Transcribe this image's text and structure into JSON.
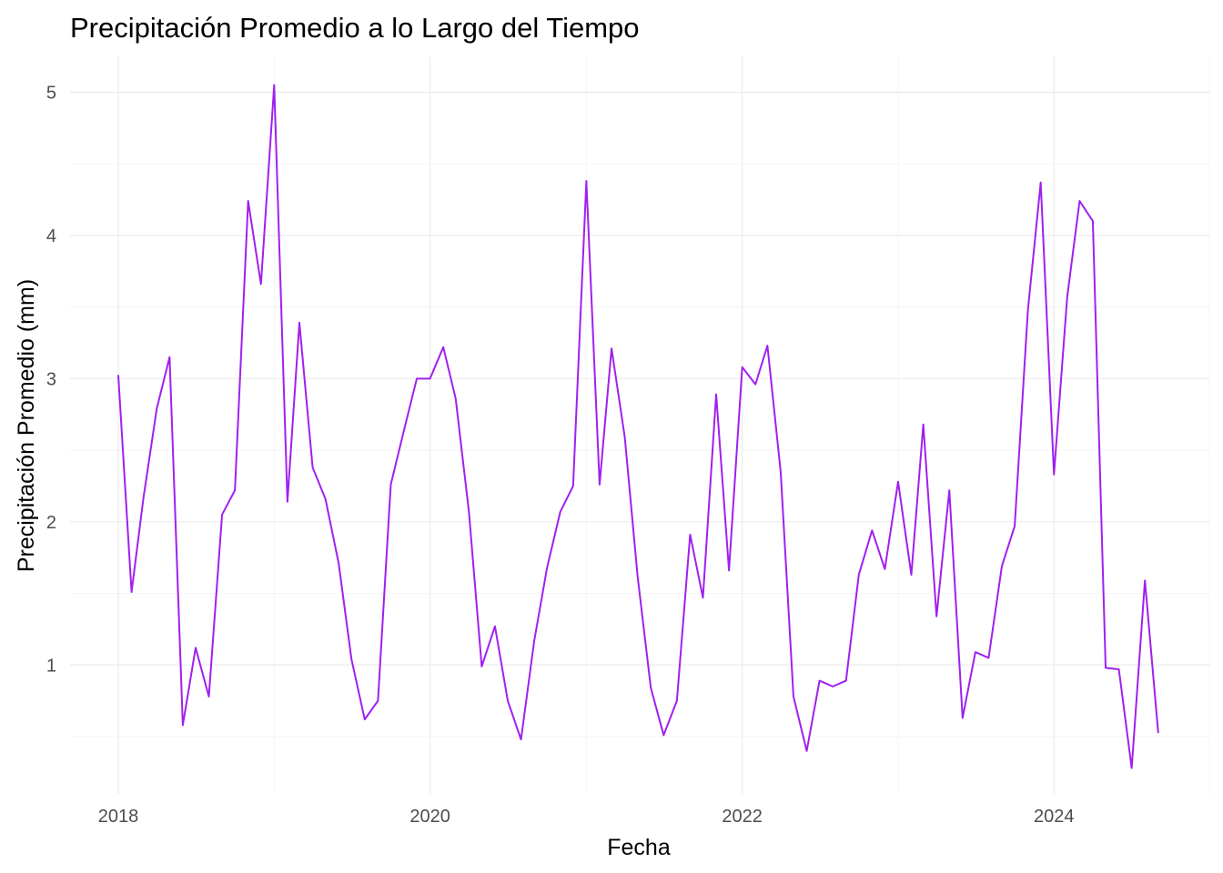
{
  "chart_data": {
    "type": "line",
    "title": "Precipitación Promedio a lo Largo del Tiempo",
    "xlabel": "Fecha",
    "ylabel": "Precipitación Promedio (mm)",
    "x_axis": "date",
    "xlim": [
      "2017-09-10",
      "2025-01-01"
    ],
    "ylim": [
      0.1,
      5.25
    ],
    "x_ticks": [
      "2018-01-01",
      "2020-01-01",
      "2022-01-01",
      "2024-01-01"
    ],
    "x_tick_labels": [
      "2018",
      "2020",
      "2022",
      "2024"
    ],
    "y_ticks": [
      1,
      2,
      3,
      4,
      5
    ],
    "y_tick_labels": [
      "1",
      "2",
      "3",
      "4",
      "5"
    ],
    "grid": true,
    "legend": "none",
    "colors": {
      "line": "#a020f0"
    },
    "series": [
      {
        "x": [
          "2018-01",
          "2018-02",
          "2018-03",
          "2018-04",
          "2018-05",
          "2018-06",
          "2018-07",
          "2018-08",
          "2018-09",
          "2018-10",
          "2018-11",
          "2018-12",
          "2019-01",
          "2019-02",
          "2019-03",
          "2019-04",
          "2019-05",
          "2019-06",
          "2019-07",
          "2019-08",
          "2019-09",
          "2019-10",
          "2019-11",
          "2019-12",
          "2020-01",
          "2020-02",
          "2020-03",
          "2020-04",
          "2020-05",
          "2020-06",
          "2020-07",
          "2020-08",
          "2020-09",
          "2020-10",
          "2020-11",
          "2020-12",
          "2021-01",
          "2021-02",
          "2021-03",
          "2021-04",
          "2021-05",
          "2021-06",
          "2021-07",
          "2021-08",
          "2021-09",
          "2021-10",
          "2021-11",
          "2021-12",
          "2022-01",
          "2022-02",
          "2022-03",
          "2022-04",
          "2022-05",
          "2022-06",
          "2022-07",
          "2022-08",
          "2022-09",
          "2022-10",
          "2022-11",
          "2022-12",
          "2023-01",
          "2023-02",
          "2023-03",
          "2023-04",
          "2023-05",
          "2023-06",
          "2023-07",
          "2023-08",
          "2023-09",
          "2023-10",
          "2023-11",
          "2023-12",
          "2024-01",
          "2024-02",
          "2024-03",
          "2024-04",
          "2024-05",
          "2024-06",
          "2024-07",
          "2024-08",
          "2024-09"
        ],
        "values": [
          3.02,
          1.51,
          2.17,
          2.79,
          3.15,
          0.58,
          1.12,
          0.78,
          2.05,
          2.22,
          4.24,
          3.66,
          5.05,
          2.14,
          3.39,
          2.38,
          2.16,
          1.71,
          1.04,
          0.62,
          0.75,
          2.26,
          2.64,
          3.0,
          3.0,
          3.22,
          2.86,
          2.07,
          0.99,
          1.27,
          0.75,
          0.48,
          1.17,
          1.68,
          2.07,
          2.25,
          4.38,
          2.26,
          3.21,
          2.59,
          1.62,
          0.84,
          0.51,
          0.75,
          1.91,
          1.47,
          2.89,
          1.66,
          3.08,
          2.96,
          3.23,
          2.35,
          0.78,
          0.4,
          0.89,
          0.85,
          0.89,
          1.63,
          1.94,
          1.67,
          2.28,
          1.63,
          2.68,
          1.34,
          2.22,
          0.63,
          1.09,
          1.05,
          1.69,
          1.97,
          3.48,
          4.37,
          2.33,
          3.57,
          4.24,
          4.1,
          0.98,
          0.97,
          0.28,
          1.59,
          0.53
        ]
      }
    ]
  }
}
